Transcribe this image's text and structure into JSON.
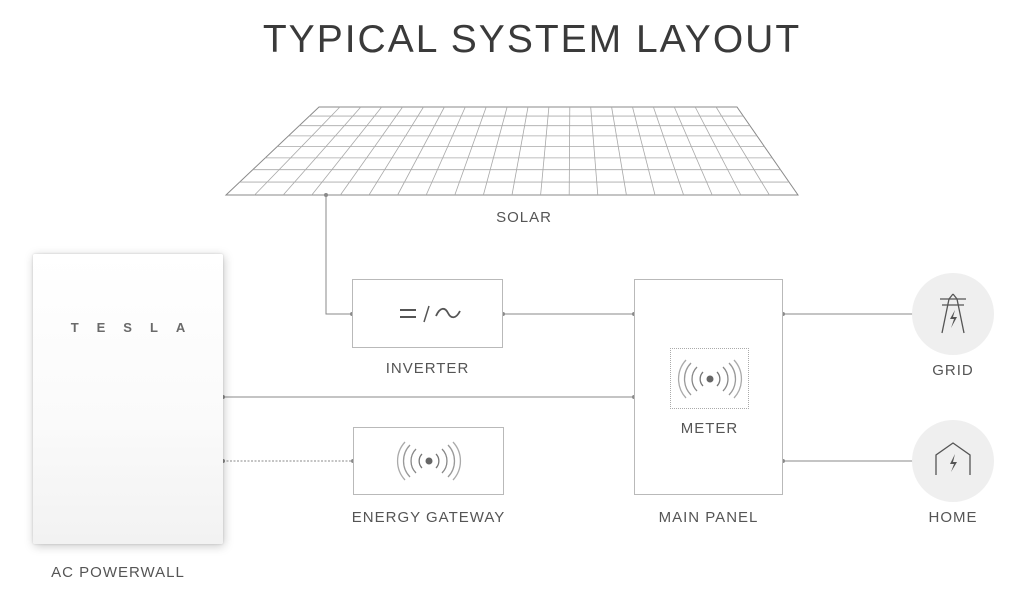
{
  "title": "TYPICAL SYSTEM LAYOUT",
  "nodes": {
    "solar": "SOLAR",
    "powerwall": "AC POWERWALL",
    "powerwall_brand": "TESLA",
    "inverter": "INVERTER",
    "energy_gateway": "ENERGY GATEWAY",
    "meter": "METER",
    "main_panel": "MAIN PANEL",
    "grid": "GRID",
    "home": "HOME"
  },
  "icons": {
    "inverter": "dc-ac-icon",
    "energy_gateway": "wireless-signal-icon",
    "meter": "wireless-signal-icon",
    "grid": "power-tower-icon",
    "home": "house-lightning-icon"
  },
  "colors": {
    "line": "#8a8a8a",
    "box_border": "#b9b9b9",
    "icon_bg": "#efefef"
  }
}
